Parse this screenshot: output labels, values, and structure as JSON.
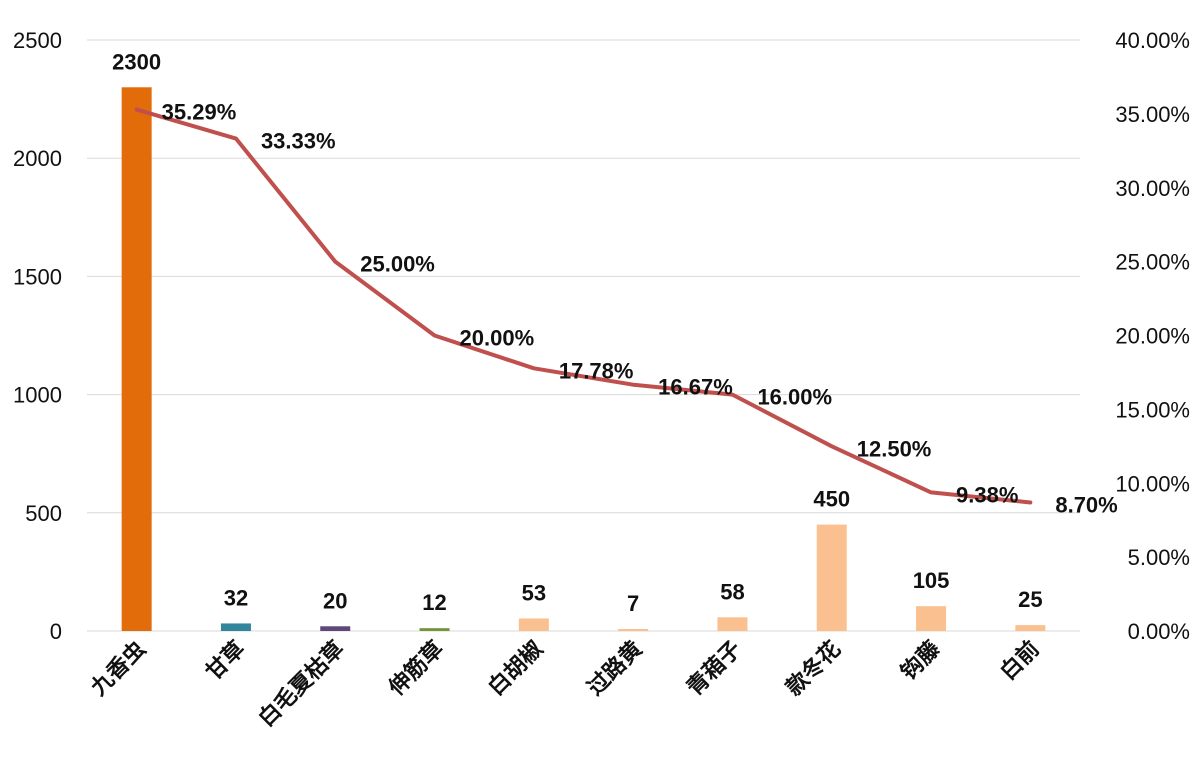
{
  "chart_data": {
    "type": "bar",
    "categories": [
      "九香虫",
      "甘草",
      "白毛夏枯草",
      "伸筋草",
      "白胡椒",
      "过路黄",
      "青葙子",
      "款冬花",
      "钩藤",
      "白前"
    ],
    "series": [
      {
        "type": "bar",
        "values": [
          2300,
          32,
          20,
          12,
          53,
          7,
          58,
          450,
          105,
          25
        ],
        "value_labels": [
          "2300",
          "32",
          "20",
          "12",
          "53",
          "7",
          "58",
          "450",
          "105",
          "25"
        ],
        "colors": [
          "#E36C0A",
          "#31859C",
          "#5F497A",
          "#76923C",
          "#FAC090",
          "#FAC090",
          "#FAC090",
          "#FAC090",
          "#FAC090",
          "#FAC090"
        ],
        "axis": "left"
      },
      {
        "type": "line",
        "values": [
          35.29,
          33.33,
          25.0,
          20.0,
          17.78,
          16.67,
          16.0,
          12.5,
          9.38,
          8.7
        ],
        "value_labels": [
          "35.29%",
          "33.33%",
          "25.00%",
          "20.00%",
          "17.78%",
          "16.67%",
          "16.00%",
          "12.50%",
          "9.38%",
          "8.70%"
        ],
        "color": "#C0504D",
        "axis": "right"
      }
    ],
    "y_left": {
      "range": [
        0,
        2500
      ],
      "ticks": [
        0,
        500,
        1000,
        1500,
        2000,
        2500
      ],
      "tick_labels": [
        "0",
        "500",
        "1000",
        "1500",
        "2000",
        "2500"
      ]
    },
    "y_right": {
      "range": [
        0,
        40
      ],
      "ticks": [
        0,
        5,
        10,
        15,
        20,
        25,
        30,
        35,
        40
      ],
      "tick_labels": [
        "0.00%",
        "5.00%",
        "10.00%",
        "15.00%",
        "20.00%",
        "25.00%",
        "30.00%",
        "35.00%",
        "40.00%"
      ]
    },
    "grid": true,
    "legend": "none",
    "title": "",
    "xlabel": "",
    "ylabel": ""
  }
}
